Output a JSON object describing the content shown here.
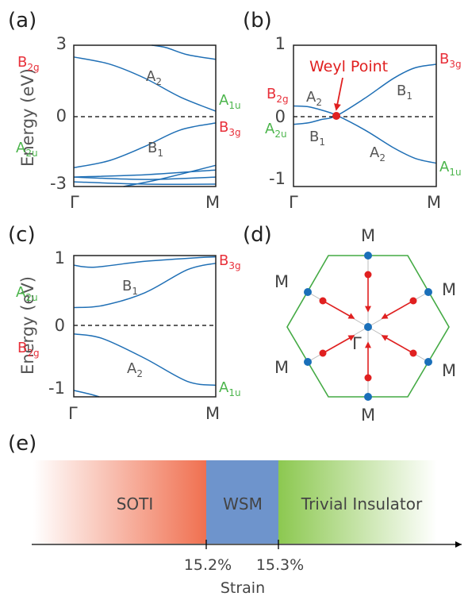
{
  "panels": {
    "a": {
      "label": "(a)",
      "ylabel": "Energy (eV)",
      "yticks": [
        "3",
        "0",
        "-3"
      ],
      "xticks": [
        "Γ",
        "M"
      ]
    },
    "b": {
      "label": "(b)",
      "yticks": [
        "1",
        "0",
        "-1"
      ],
      "xticks": [
        "Γ",
        "M"
      ],
      "weyl_label": "Weyl Point"
    },
    "c": {
      "label": "(c)",
      "ylabel": "Energy (eV)",
      "yticks": [
        "1",
        "0",
        "-1"
      ],
      "xticks": [
        "Γ",
        "M"
      ]
    },
    "d": {
      "label": "(d)",
      "center": "Γ",
      "vertices": [
        "M",
        "M",
        "M",
        "M",
        "M",
        "M"
      ]
    },
    "e": {
      "label": "(e)"
    }
  },
  "irreps": {
    "a_B2g": {
      "main": "B",
      "sub": "2g"
    },
    "a_A2u": {
      "main": "A",
      "sub": "2u"
    },
    "a_A1u": {
      "main": "A",
      "sub": "1u"
    },
    "a_B3g": {
      "main": "B",
      "sub": "3g"
    },
    "a_A2": {
      "main": "A",
      "sub": "2"
    },
    "a_B1": {
      "main": "B",
      "sub": "1"
    },
    "b_B2g": {
      "main": "B",
      "sub": "2g"
    },
    "b_A2u": {
      "main": "A",
      "sub": "2u"
    },
    "b_B3g": {
      "main": "B",
      "sub": "3g"
    },
    "b_A1u": {
      "main": "A",
      "sub": "1u"
    },
    "b_A2_top": {
      "main": "A",
      "sub": "2"
    },
    "b_B1_top": {
      "main": "B",
      "sub": "1"
    },
    "b_B1_bot": {
      "main": "B",
      "sub": "1"
    },
    "b_A2_bot": {
      "main": "A",
      "sub": "2"
    },
    "c_A2u": {
      "main": "A",
      "sub": "2u"
    },
    "c_B2g": {
      "main": "B",
      "sub": "2g"
    },
    "c_B3g": {
      "main": "B",
      "sub": "3g"
    },
    "c_A1u": {
      "main": "A",
      "sub": "1u"
    },
    "c_B1": {
      "main": "B",
      "sub": "1"
    },
    "c_A2": {
      "main": "A",
      "sub": "2"
    }
  },
  "phase_bar": {
    "segments": [
      "SOTI",
      "WSM",
      "Trivial Insulator"
    ],
    "boundaries": [
      "15.2%",
      "15.3%"
    ],
    "axis_label": "Strain"
  },
  "colors": {
    "band": "#1f6fb5",
    "irrep_red": "#e8303a",
    "irrep_green": "#4cb54c",
    "arrow_red": "#e02020",
    "bz_vertex": "#1a6fb9",
    "hexagon": "#44aa44",
    "soti": "#f07050",
    "wsm": "#6e94cc",
    "trivial": "#8cc850"
  },
  "chart_data": [
    {
      "type": "line",
      "panel": "(a)",
      "x": [
        "Γ",
        "M"
      ],
      "ylim": [
        -3,
        3
      ],
      "ylabel": "Energy (eV)",
      "fermi_level": 0,
      "series": [
        {
          "x": [
            0,
            0.25,
            0.5,
            0.75,
            1.0
          ],
          "values": [
            2.5,
            2.2,
            1.6,
            0.8,
            0.2
          ]
        },
        {
          "x": [
            0,
            0.25,
            0.5,
            0.75,
            1.0
          ],
          "values": [
            -2.2,
            -1.9,
            -1.3,
            -0.6,
            -0.3
          ]
        },
        {
          "x": [
            0.55,
            0.65,
            0.8,
            1.0
          ],
          "values": [
            3.0,
            2.9,
            2.6,
            2.4
          ]
        },
        {
          "x": [
            0,
            0.5,
            1.0
          ],
          "values": [
            -2.8,
            -2.9,
            -2.9
          ]
        },
        {
          "x": [
            0,
            0.5,
            1.0
          ],
          "values": [
            -2.6,
            -2.5,
            -2.3
          ]
        },
        {
          "x": [
            0,
            0.5,
            1.0
          ],
          "values": [
            -2.6,
            -2.7,
            -2.6
          ]
        },
        {
          "x": [
            0.35,
            0.6,
            1.0
          ],
          "values": [
            -3.0,
            -2.7,
            -2.1
          ]
        }
      ]
    },
    {
      "type": "line",
      "panel": "(b)",
      "x": [
        "Γ",
        "M"
      ],
      "ylim": [
        -1,
        1
      ],
      "fermi_level": 0,
      "series": [
        {
          "x": [
            0,
            0.1,
            0.2,
            0.3,
            0.5,
            0.7,
            0.85,
            1.0
          ],
          "values": [
            0.14,
            0.13,
            0.08,
            0.01,
            -0.2,
            -0.45,
            -0.6,
            -0.67
          ]
        },
        {
          "x": [
            0,
            0.1,
            0.2,
            0.3,
            0.5,
            0.7,
            0.85,
            1.0
          ],
          "values": [
            -0.12,
            -0.1,
            -0.05,
            0.0,
            0.25,
            0.53,
            0.68,
            0.73
          ]
        }
      ],
      "weyl_point": {
        "x": 0.3,
        "y": 0
      }
    },
    {
      "type": "line",
      "panel": "(c)",
      "x": [
        "Γ",
        "M"
      ],
      "ylim": [
        -1.1,
        1.1
      ],
      "ylabel": "Energy (eV)",
      "fermi_level": 0,
      "series": [
        {
          "x": [
            0,
            0.2,
            0.5,
            0.8,
            1.0
          ],
          "values": [
            0.29,
            0.32,
            0.52,
            0.88,
            0.98
          ]
        },
        {
          "x": [
            0,
            0.2,
            0.5,
            0.8,
            1.0
          ],
          "values": [
            -0.12,
            -0.19,
            -0.5,
            -0.86,
            -0.92
          ]
        },
        {
          "x": [
            0,
            0.15,
            0.5,
            0.9,
            1.0
          ],
          "values": [
            0.95,
            0.92,
            1.01,
            1.07,
            1.08
          ]
        },
        {
          "x": [
            0,
            0.1,
            0.18
          ],
          "values": [
            -1.0,
            -1.05,
            -1.1
          ]
        }
      ]
    }
  ]
}
